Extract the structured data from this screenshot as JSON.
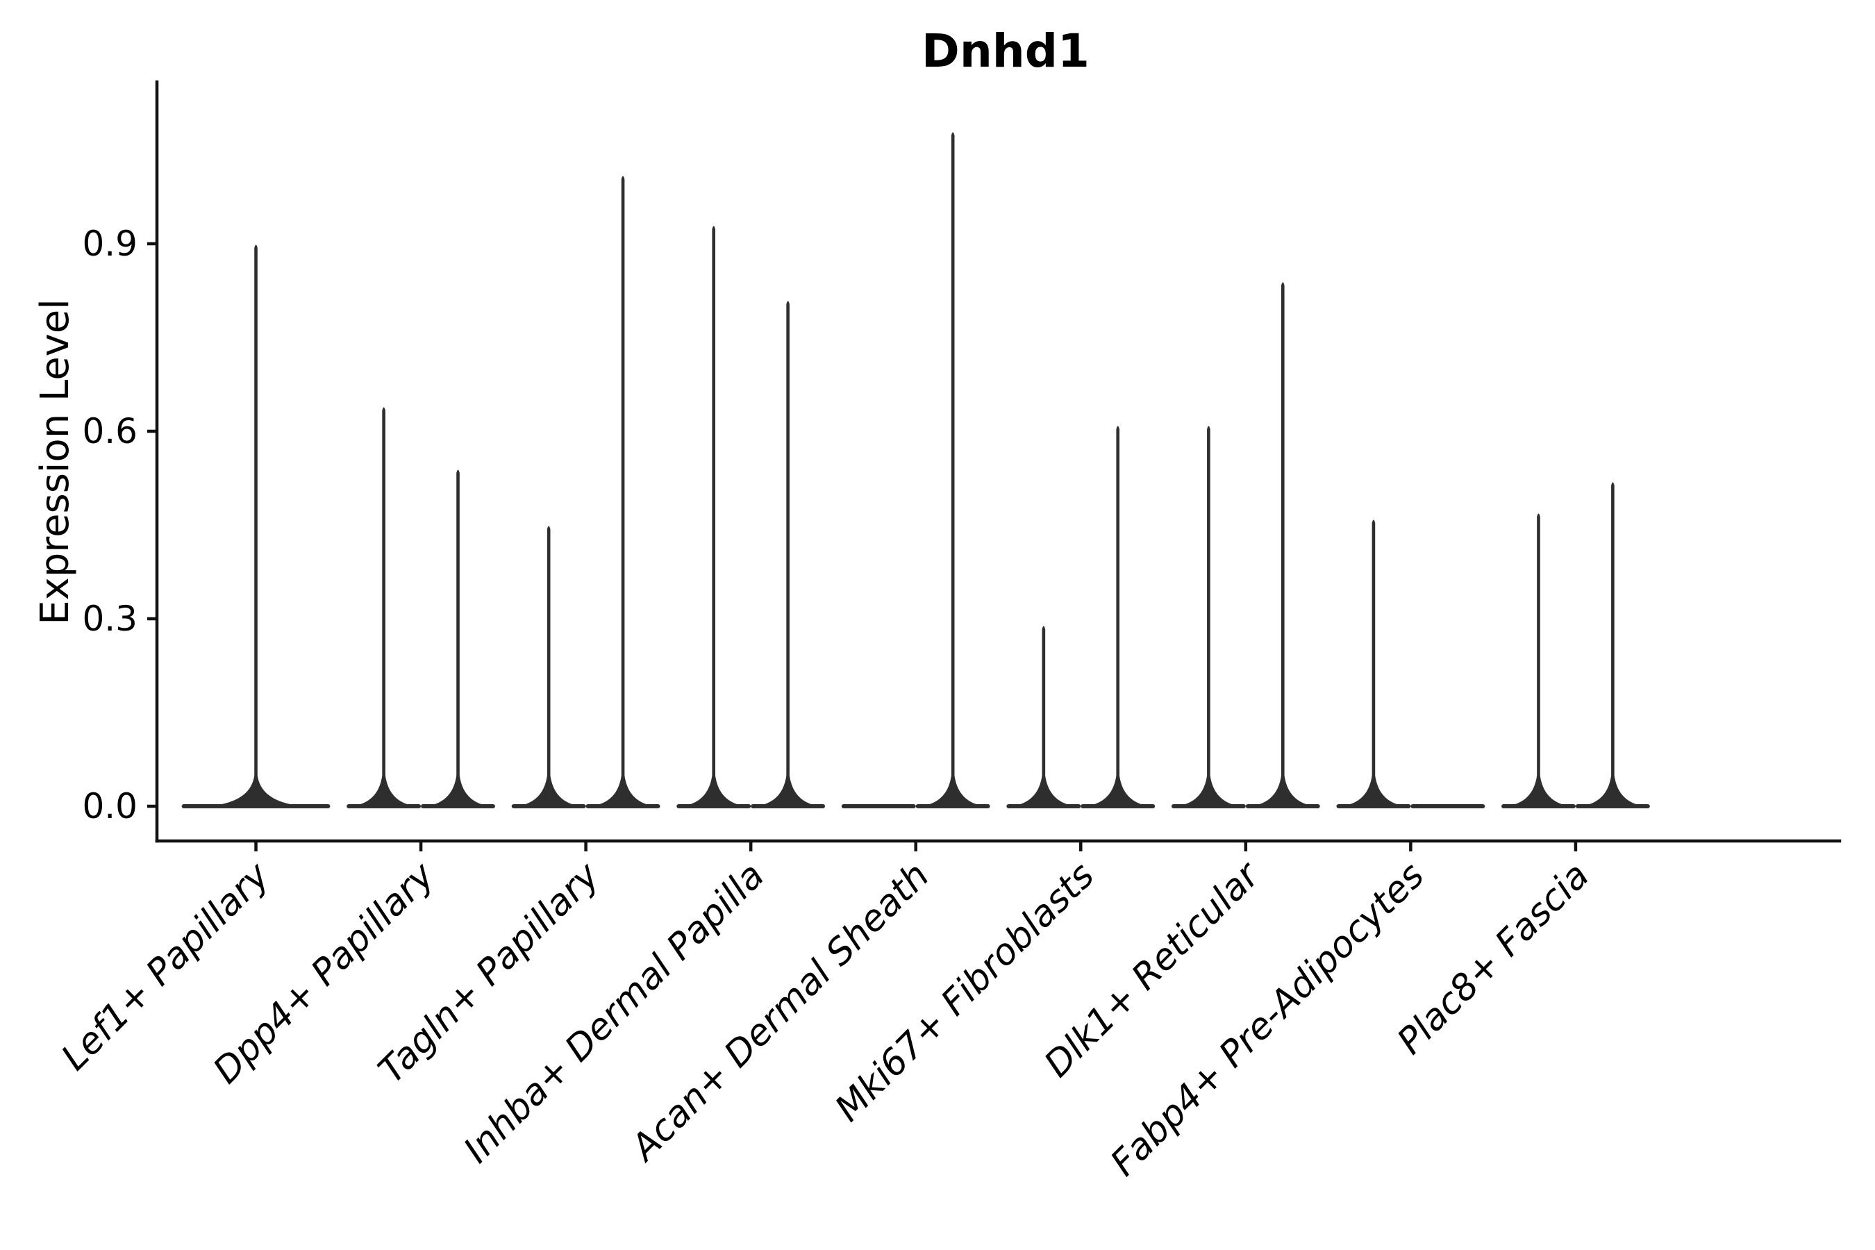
{
  "chart_data": {
    "type": "violin",
    "title": "Dnhd1",
    "xlabel": "",
    "ylabel": "Expression Level",
    "ylim": [
      0,
      1.17
    ],
    "yticks": [
      0.0,
      0.3,
      0.6,
      0.9
    ],
    "ytick_labels": [
      "0.0",
      "0.3",
      "0.6",
      "0.9"
    ],
    "grid": false,
    "legend": "none",
    "x_tick_label_angle_deg": 45,
    "x_tick_label_style": "italic",
    "axis_color": "#111111",
    "violin_color": "#2e2e2e",
    "background_color": "#ffffff",
    "description": "Violin plot of Dnhd1 expression; each violin collapses to a wide flat base at 0 with a thin spike up to the max expression value. Some categories contain two side-by-side half-width violins.",
    "categories": [
      "Lef1+ Papillary",
      "Dpp4+ Papillary",
      "Tagln+ Papillary",
      "Inhba+ Dermal Papilla",
      "Acan+ Dermal Sheath",
      "Mki67+ Fibroblasts",
      "Dlk1+ Reticular",
      "Fabp4+ Pre-Adipocytes",
      "Plac8+ Fascia"
    ],
    "violins": [
      {
        "category": "Lef1+ Papillary",
        "parts": [
          {
            "x0": -0.45,
            "x1": 0.45,
            "spike_x": 0,
            "max": 0.9
          }
        ]
      },
      {
        "category": "Dpp4+ Papillary",
        "parts": [
          {
            "x0": -0.45,
            "x1": 0,
            "spike_x": -0.225,
            "max": 0.64
          },
          {
            "x0": 0,
            "x1": 0.45,
            "spike_x": 0.225,
            "max": 0.54
          }
        ]
      },
      {
        "category": "Tagln+ Papillary",
        "parts": [
          {
            "x0": -0.45,
            "x1": 0,
            "spike_x": -0.225,
            "max": 0.45
          },
          {
            "x0": 0,
            "x1": 0.45,
            "spike_x": 0.225,
            "max": 1.01
          }
        ]
      },
      {
        "category": "Inhba+ Dermal Papilla",
        "parts": [
          {
            "x0": -0.45,
            "x1": 0,
            "spike_x": -0.225,
            "max": 0.93
          },
          {
            "x0": 0,
            "x1": 0.45,
            "spike_x": 0.225,
            "max": 0.81
          }
        ]
      },
      {
        "category": "Acan+ Dermal Sheath",
        "parts": [
          {
            "x0": -0.45,
            "x1": 0,
            "spike_x": null,
            "max": 0
          },
          {
            "x0": 0,
            "x1": 0.45,
            "spike_x": 0.225,
            "max": 1.08
          }
        ]
      },
      {
        "category": "Mki67+ Fibroblasts",
        "parts": [
          {
            "x0": -0.45,
            "x1": 0,
            "spike_x": -0.225,
            "max": 0.29
          },
          {
            "x0": 0,
            "x1": 0.45,
            "spike_x": 0.225,
            "max": 0.61
          }
        ]
      },
      {
        "category": "Dlk1+ Reticular",
        "parts": [
          {
            "x0": -0.45,
            "x1": 0,
            "spike_x": -0.225,
            "max": 0.61
          },
          {
            "x0": 0,
            "x1": 0.45,
            "spike_x": 0.225,
            "max": 0.84
          }
        ]
      },
      {
        "category": "Fabp4+ Pre-Adipocytes",
        "parts": [
          {
            "x0": -0.45,
            "x1": 0,
            "spike_x": -0.225,
            "max": 0.46
          },
          {
            "x0": 0,
            "x1": 0.45,
            "spike_x": null,
            "max": 0
          }
        ]
      },
      {
        "category": "Plac8+ Fascia",
        "parts": [
          {
            "x0": -0.45,
            "x1": 0,
            "spike_x": -0.225,
            "max": 0.47
          },
          {
            "x0": 0,
            "x1": 0.45,
            "spike_x": 0.225,
            "max": 0.52
          }
        ]
      }
    ]
  }
}
